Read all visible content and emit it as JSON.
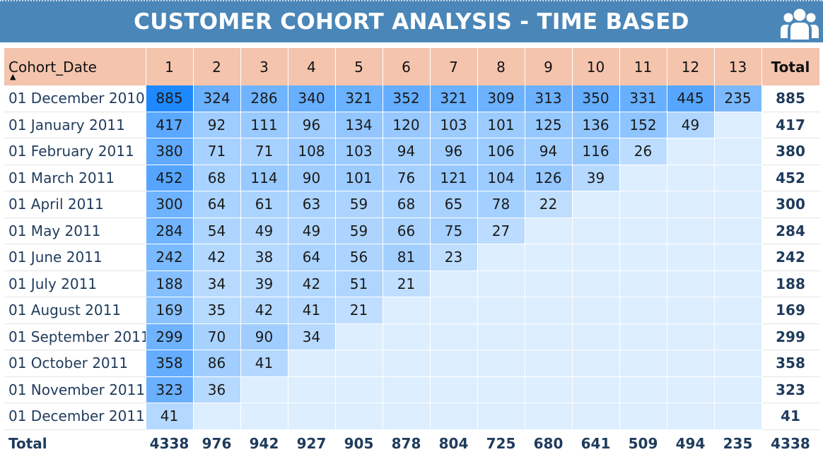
{
  "header": {
    "title": "CUSTOMER COHORT ANALYSIS - TIME BASED",
    "icon": "users-group-icon"
  },
  "colors": {
    "header_bg": "#4a86b8",
    "column_header_bg": "#f4c4ad",
    "cell_min": "#ddeeff",
    "cell_max": "#1e88ff",
    "total_text": "#1f3b5c"
  },
  "matrix": {
    "row_header": "Cohort_Date",
    "sort_indicator": "▲",
    "columns": [
      "1",
      "2",
      "3",
      "4",
      "5",
      "6",
      "7",
      "8",
      "9",
      "10",
      "11",
      "12",
      "13"
    ],
    "total_label": "Total",
    "rows": [
      {
        "label": "01 December 2010",
        "values": [
          "885",
          "324",
          "286",
          "340",
          "321",
          "352",
          "321",
          "309",
          "313",
          "350",
          "331",
          "445",
          "235"
        ],
        "total": "885"
      },
      {
        "label": "01 January 2011",
        "values": [
          "417",
          "92",
          "111",
          "96",
          "134",
          "120",
          "103",
          "101",
          "125",
          "136",
          "152",
          "49",
          ""
        ],
        "total": "417"
      },
      {
        "label": "01 February 2011",
        "values": [
          "380",
          "71",
          "71",
          "108",
          "103",
          "94",
          "96",
          "106",
          "94",
          "116",
          "26",
          "",
          ""
        ],
        "total": "380"
      },
      {
        "label": "01 March 2011",
        "values": [
          "452",
          "68",
          "114",
          "90",
          "101",
          "76",
          "121",
          "104",
          "126",
          "39",
          "",
          "",
          ""
        ],
        "total": "452"
      },
      {
        "label": "01 April 2011",
        "values": [
          "300",
          "64",
          "61",
          "63",
          "59",
          "68",
          "65",
          "78",
          "22",
          "",
          "",
          "",
          ""
        ],
        "total": "300"
      },
      {
        "label": "01 May 2011",
        "values": [
          "284",
          "54",
          "49",
          "49",
          "59",
          "66",
          "75",
          "27",
          "",
          "",
          "",
          "",
          ""
        ],
        "total": "284"
      },
      {
        "label": "01 June 2011",
        "values": [
          "242",
          "42",
          "38",
          "64",
          "56",
          "81",
          "23",
          "",
          "",
          "",
          "",
          "",
          ""
        ],
        "total": "242"
      },
      {
        "label": "01 July 2011",
        "values": [
          "188",
          "34",
          "39",
          "42",
          "51",
          "21",
          "",
          "",
          "",
          "",
          "",
          "",
          ""
        ],
        "total": "188"
      },
      {
        "label": "01 August 2011",
        "values": [
          "169",
          "35",
          "42",
          "41",
          "21",
          "",
          "",
          "",
          "",
          "",
          "",
          "",
          ""
        ],
        "total": "169"
      },
      {
        "label": "01 September 2011",
        "values": [
          "299",
          "70",
          "90",
          "34",
          "",
          "",
          "",
          "",
          "",
          "",
          "",
          "",
          ""
        ],
        "total": "299"
      },
      {
        "label": "01 October 2011",
        "values": [
          "358",
          "86",
          "41",
          "",
          "",
          "",
          "",
          "",
          "",
          "",
          "",
          "",
          ""
        ],
        "total": "358"
      },
      {
        "label": "01 November 2011",
        "values": [
          "323",
          "36",
          "",
          "",
          "",
          "",
          "",
          "",
          "",
          "",
          "",
          "",
          ""
        ],
        "total": "323"
      },
      {
        "label": "01 December 2011",
        "values": [
          "41",
          "",
          "",
          "",
          "",
          "",
          "",
          "",
          "",
          "",
          "",
          "",
          ""
        ],
        "total": "41"
      }
    ],
    "totals_row": {
      "label": "Total",
      "values": [
        "4338",
        "976",
        "942",
        "927",
        "905",
        "878",
        "804",
        "725",
        "680",
        "641",
        "509",
        "494",
        "235"
      ],
      "total": "4338"
    }
  }
}
